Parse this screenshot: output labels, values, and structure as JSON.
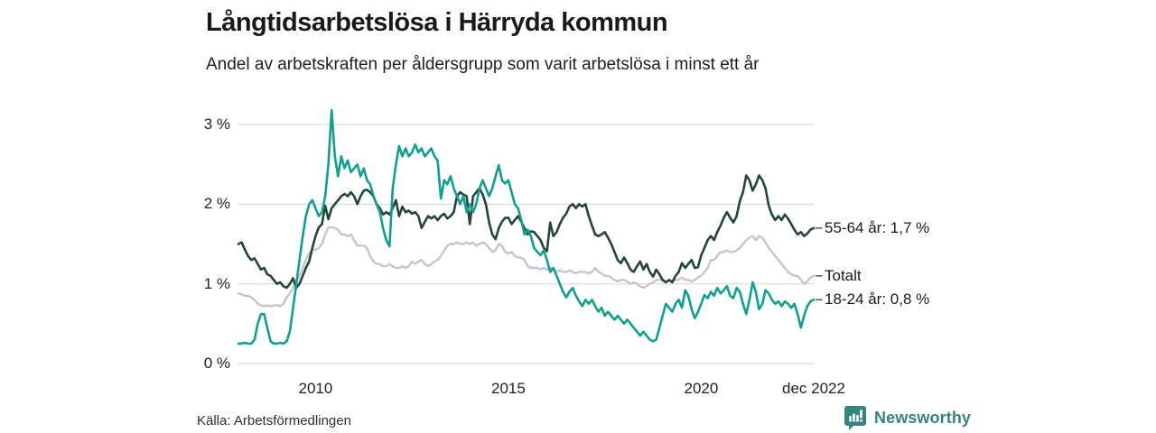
{
  "header": {
    "title": "Långtidsarbetslösa i Härryda kommun",
    "subtitle": "Andel av arbetskraften per åldersgrupp som varit arbetslösa i minst ett år"
  },
  "chart_data": {
    "type": "line",
    "title": "Långtidsarbetslösa i Härryda kommun",
    "subtitle": "Andel av arbetskraften per åldersgrupp som varit arbetslösa i minst ett år",
    "x_unit": "month",
    "x_start": "jan 2008",
    "x_end": "dec 2022",
    "ylim": [
      0,
      3.3
    ],
    "grid": "horizontal",
    "y_ticks": [
      {
        "value": 0,
        "label": "0 %"
      },
      {
        "value": 1,
        "label": "1 %"
      },
      {
        "value": 2,
        "label": "2 %"
      },
      {
        "value": 3,
        "label": "3 %"
      }
    ],
    "x_ticks": [
      {
        "month_index": 24,
        "label": "2010"
      },
      {
        "month_index": 84,
        "label": "2015"
      },
      {
        "month_index": 144,
        "label": "2020"
      },
      {
        "month_index": 179,
        "label": "dec 2022"
      }
    ],
    "legend_position": "right-end-labels",
    "series": [
      {
        "name": "Totalt",
        "end_label": "Totalt",
        "color": "#c7c4d2",
        "width": 2.4,
        "values": [
          0.88,
          0.87,
          0.85,
          0.85,
          0.83,
          0.8,
          0.75,
          0.73,
          0.72,
          0.73,
          0.72,
          0.73,
          0.73,
          0.72,
          0.75,
          0.83,
          0.88,
          0.95,
          1.02,
          1.1,
          1.2,
          1.3,
          1.38,
          1.43,
          1.43,
          1.45,
          1.5,
          1.62,
          1.71,
          1.71,
          1.7,
          1.68,
          1.62,
          1.62,
          1.6,
          1.62,
          1.55,
          1.48,
          1.48,
          1.48,
          1.45,
          1.35,
          1.28,
          1.25,
          1.25,
          1.22,
          1.22,
          1.25,
          1.22,
          1.2,
          1.2,
          1.22,
          1.2,
          1.22,
          1.28,
          1.25,
          1.28,
          1.3,
          1.25,
          1.22,
          1.25,
          1.28,
          1.3,
          1.35,
          1.42,
          1.48,
          1.5,
          1.5,
          1.52,
          1.5,
          1.5,
          1.52,
          1.5,
          1.52,
          1.48,
          1.5,
          1.52,
          1.5,
          1.45,
          1.4,
          1.42,
          1.5,
          1.48,
          1.4,
          1.38,
          1.4,
          1.35,
          1.33,
          1.33,
          1.3,
          1.22,
          1.2,
          1.2,
          1.2,
          1.18,
          1.2,
          1.18,
          1.2,
          1.18,
          1.15,
          1.17,
          1.15,
          1.15,
          1.17,
          1.15,
          1.13,
          1.15,
          1.15,
          1.15,
          1.13,
          1.15,
          1.2,
          1.15,
          1.13,
          1.1,
          1.1,
          1.08,
          1.05,
          1.03,
          1.05,
          1.05,
          1.03,
          1.0,
          1.02,
          1.0,
          0.97,
          0.95,
          0.97,
          1.0,
          1.02,
          1.05,
          1.05,
          1.05,
          1.02,
          1.05,
          1.03,
          1.05,
          1.05,
          1.08,
          1.05,
          1.05,
          1.03,
          1.05,
          1.08,
          1.1,
          1.15,
          1.2,
          1.3,
          1.3,
          1.35,
          1.4,
          1.4,
          1.42,
          1.4,
          1.4,
          1.42,
          1.45,
          1.5,
          1.55,
          1.58,
          1.6,
          1.55,
          1.6,
          1.58,
          1.52,
          1.45,
          1.4,
          1.35,
          1.3,
          1.25,
          1.2,
          1.15,
          1.12,
          1.1,
          1.1,
          1.05,
          1.0,
          1.03,
          1.08,
          1.1
        ]
      },
      {
        "name": "55-64 år",
        "end_label": "55-64 år: 1,7 %",
        "color": "#24463a",
        "width": 2.6,
        "values": [
          1.5,
          1.52,
          1.43,
          1.35,
          1.3,
          1.32,
          1.25,
          1.18,
          1.2,
          1.12,
          1.1,
          1.05,
          1.0,
          1.02,
          0.97,
          0.95,
          1.0,
          1.07,
          0.95,
          1.0,
          1.1,
          1.2,
          1.28,
          1.45,
          1.6,
          1.71,
          1.75,
          1.98,
          1.81,
          1.95,
          2.0,
          2.05,
          2.1,
          2.13,
          2.1,
          2.15,
          2.1,
          2.0,
          2.1,
          2.17,
          2.18,
          2.15,
          2.1,
          2.0,
          1.95,
          1.87,
          1.9,
          1.87,
          1.95,
          2.05,
          1.85,
          1.97,
          1.9,
          1.92,
          1.88,
          1.9,
          1.85,
          1.7,
          1.78,
          1.85,
          1.82,
          1.85,
          1.8,
          1.85,
          1.88,
          1.82,
          1.85,
          1.9,
          2.1,
          2.15,
          2.12,
          2.1,
          1.75,
          2.1,
          2.15,
          2.2,
          2.12,
          2.0,
          1.77,
          1.62,
          1.56,
          1.7,
          1.78,
          1.83,
          1.83,
          1.75,
          1.8,
          1.85,
          1.78,
          1.7,
          1.62,
          1.66,
          1.65,
          1.6,
          1.55,
          1.45,
          1.41,
          1.77,
          1.6,
          1.65,
          1.75,
          1.83,
          1.88,
          1.97,
          2.0,
          1.95,
          2.0,
          1.97,
          2.0,
          1.85,
          1.73,
          1.62,
          1.6,
          1.62,
          1.65,
          1.58,
          1.5,
          1.4,
          1.3,
          1.26,
          1.33,
          1.26,
          1.18,
          1.15,
          1.22,
          1.28,
          1.18,
          1.25,
          1.15,
          1.09,
          1.18,
          1.12,
          1.05,
          1.02,
          1.05,
          1.02,
          1.1,
          1.15,
          1.26,
          1.2,
          1.25,
          1.3,
          1.2,
          1.21,
          1.36,
          1.45,
          1.55,
          1.6,
          1.55,
          1.65,
          1.73,
          1.83,
          1.9,
          1.83,
          1.77,
          1.85,
          2.04,
          2.15,
          2.36,
          2.3,
          2.17,
          2.25,
          2.36,
          2.3,
          2.2,
          1.98,
          1.87,
          1.8,
          1.85,
          1.8,
          1.87,
          1.82,
          1.75,
          1.68,
          1.62,
          1.65,
          1.6,
          1.63,
          1.68,
          1.7
        ]
      },
      {
        "name": "18-24 år",
        "end_label": "18-24 år: 0,8 %",
        "color": "#10a091",
        "width": 2.6,
        "values": [
          0.25,
          0.25,
          0.26,
          0.25,
          0.25,
          0.3,
          0.5,
          0.62,
          0.62,
          0.45,
          0.28,
          0.25,
          0.25,
          0.26,
          0.25,
          0.28,
          0.4,
          0.7,
          1.0,
          1.3,
          1.6,
          1.85,
          2.0,
          2.05,
          1.95,
          1.85,
          1.9,
          2.1,
          2.5,
          3.18,
          2.6,
          2.35,
          2.6,
          2.45,
          2.55,
          2.4,
          2.45,
          2.5,
          2.35,
          2.45,
          2.3,
          2.25,
          2.1,
          2.0,
          1.9,
          1.7,
          1.55,
          1.47,
          2.2,
          2.5,
          2.73,
          2.6,
          2.7,
          2.6,
          2.65,
          2.75,
          2.65,
          2.7,
          2.6,
          2.65,
          2.7,
          2.6,
          2.55,
          2.07,
          2.3,
          2.25,
          2.35,
          2.2,
          2.1,
          2.0,
          2.1,
          1.9,
          2.0,
          1.9,
          2.0,
          2.2,
          2.3,
          2.2,
          2.1,
          2.2,
          2.35,
          2.49,
          2.3,
          2.26,
          2.3,
          2.15,
          2.0,
          1.95,
          1.8,
          1.62,
          1.68,
          1.6,
          1.45,
          1.4,
          1.36,
          1.42,
          1.3,
          1.15,
          1.2,
          1.1,
          1.0,
          0.9,
          0.83,
          0.9,
          0.95,
          0.85,
          0.78,
          0.72,
          0.8,
          0.75,
          0.8,
          0.72,
          0.65,
          0.7,
          0.6,
          0.65,
          0.6,
          0.55,
          0.6,
          0.55,
          0.5,
          0.55,
          0.5,
          0.45,
          0.4,
          0.35,
          0.4,
          0.35,
          0.3,
          0.28,
          0.3,
          0.45,
          0.6,
          0.75,
          0.7,
          0.65,
          0.75,
          0.8,
          0.7,
          0.92,
          0.85,
          0.68,
          0.57,
          0.65,
          0.75,
          0.86,
          0.82,
          0.9,
          0.85,
          0.95,
          0.88,
          0.92,
          0.97,
          0.85,
          0.82,
          0.95,
          0.9,
          0.75,
          0.62,
          0.8,
          1.02,
          0.9,
          0.68,
          0.75,
          0.92,
          0.88,
          0.8,
          0.75,
          0.78,
          0.72,
          0.78,
          0.75,
          0.7,
          0.75,
          0.62,
          0.45,
          0.6,
          0.72,
          0.78,
          0.8
        ]
      }
    ]
  },
  "footer": {
    "source": "Källa: Arbetsförmedlingen",
    "brand": "Newsworthy"
  },
  "colors": {
    "accent_teal": "#10a091",
    "dark_green": "#24463a",
    "total_gray": "#c7c4d2",
    "gridline": "#dadade",
    "brand_teal": "#36847c",
    "text": "#1a1a1a"
  }
}
